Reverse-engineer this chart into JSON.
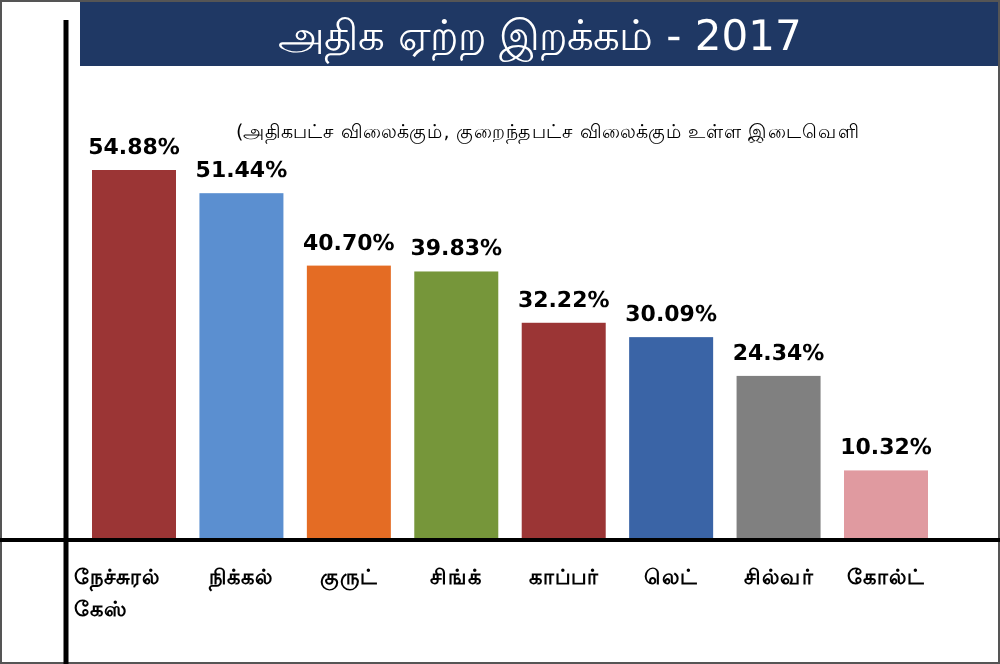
{
  "chart_data": {
    "type": "bar",
    "title": "அதிக ஏற்ற இறக்கம் - 2017",
    "subtitle": "(அதிகபட்ச விலைக்கும், குறைந்தபட்ச விலைக்கும் உள்ள இடைவெளி",
    "categories": [
      "நேச்சுரல் கேஸ்",
      "நிக்கல்",
      "குருட்",
      "சிங்க்",
      "காப்பர்",
      "லெட்",
      "சில்வர்",
      "கோல்ட்"
    ],
    "values": [
      54.88,
      51.44,
      40.7,
      39.83,
      32.22,
      30.09,
      24.34,
      10.32
    ],
    "value_labels": [
      "54.88%",
      "51.44%",
      "40.70%",
      "39.83%",
      "32.22%",
      "30.09%",
      "24.34%",
      "10.32%"
    ],
    "colors": [
      "#9b3535",
      "#5b8fd0",
      "#e46c24",
      "#76963a",
      "#9b3535",
      "#3a64a6",
      "#808080",
      "#e09aa0"
    ]
  }
}
